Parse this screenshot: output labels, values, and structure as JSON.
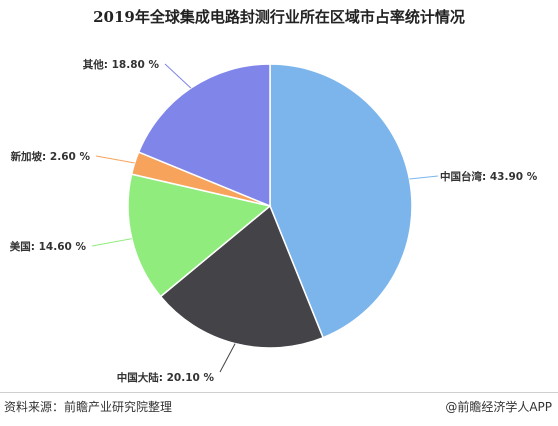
{
  "chart_data": {
    "type": "pie",
    "title": "2019年全球集成电路封测行业所在区域市占率统计情况",
    "slices": [
      {
        "label": "中国台湾",
        "value": 43.9,
        "display": "43.90 %",
        "color": "#7cb5ec"
      },
      {
        "label": "中国大陆",
        "value": 20.1,
        "display": "20.10 %",
        "color": "#434348"
      },
      {
        "label": "美国",
        "value": 14.6,
        "display": "14.60 %",
        "color": "#90ed7d"
      },
      {
        "label": "新加坡",
        "value": 2.6,
        "display": "2.60 %",
        "color": "#f7a35c"
      },
      {
        "label": "其他",
        "value": 18.8,
        "display": "18.80 %",
        "color": "#8085e9"
      }
    ],
    "start_angle_deg": 0,
    "direction": "clockwise"
  },
  "footer": {
    "source": "资料来源：前瞻产业研究院整理",
    "brand": "@前瞻经济学人APP"
  }
}
